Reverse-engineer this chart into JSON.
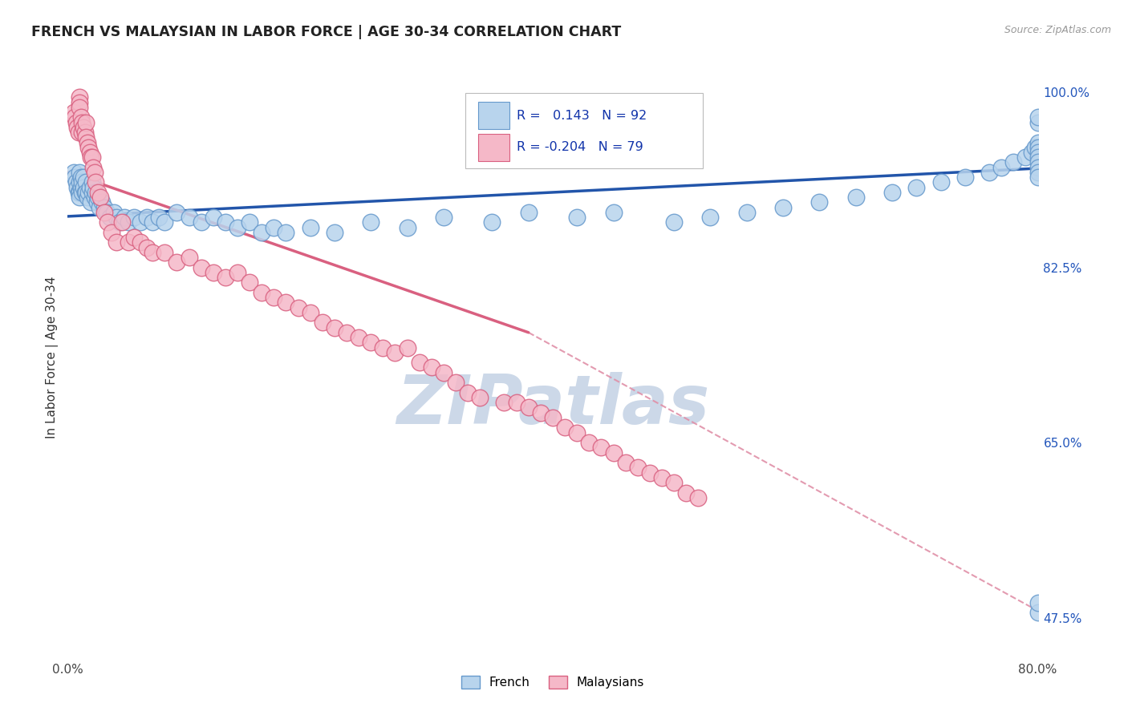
{
  "title": "FRENCH VS MALAYSIAN IN LABOR FORCE | AGE 30-34 CORRELATION CHART",
  "source_text": "Source: ZipAtlas.com",
  "ylabel": "In Labor Force | Age 30-34",
  "xlim": [
    0.0,
    0.8
  ],
  "ylim": [
    0.435,
    1.035
  ],
  "yticks_right": [
    1.0,
    0.825,
    0.65,
    0.475
  ],
  "ytick_labels_right": [
    "100.0%",
    "82.5%",
    "65.0%",
    "47.5%"
  ],
  "R_french": 0.143,
  "N_french": 92,
  "R_malaysian": -0.204,
  "N_malaysian": 79,
  "french_color": "#b8d4ed",
  "french_edge_color": "#6699cc",
  "malaysian_color": "#f5b8c8",
  "malaysian_edge_color": "#d96080",
  "trend_french_color": "#2255aa",
  "trend_malaysian_color": "#d96080",
  "dash_color": "#e090a8",
  "watermark_color": "#ccd8e8",
  "background_color": "#ffffff",
  "grid_color": "#cccccc",
  "fr_x": [
    0.005,
    0.006,
    0.007,
    0.008,
    0.009,
    0.01,
    0.01,
    0.01,
    0.01,
    0.011,
    0.011,
    0.012,
    0.012,
    0.013,
    0.013,
    0.014,
    0.015,
    0.015,
    0.016,
    0.017,
    0.018,
    0.019,
    0.02,
    0.02,
    0.021,
    0.022,
    0.023,
    0.024,
    0.025,
    0.026,
    0.028,
    0.03,
    0.032,
    0.035,
    0.038,
    0.04,
    0.043,
    0.047,
    0.05,
    0.055,
    0.06,
    0.065,
    0.07,
    0.075,
    0.08,
    0.09,
    0.1,
    0.11,
    0.12,
    0.13,
    0.14,
    0.15,
    0.16,
    0.17,
    0.18,
    0.2,
    0.22,
    0.25,
    0.28,
    0.31,
    0.35,
    0.38,
    0.42,
    0.45,
    0.5,
    0.53,
    0.56,
    0.59,
    0.62,
    0.65,
    0.68,
    0.7,
    0.72,
    0.74,
    0.76,
    0.77,
    0.78,
    0.79,
    0.795,
    0.798,
    0.8,
    0.8,
    0.8,
    0.8,
    0.8,
    0.8,
    0.8,
    0.8,
    0.8,
    0.8,
    0.8,
    0.8
  ],
  "fr_y": [
    0.92,
    0.915,
    0.91,
    0.905,
    0.9,
    0.92,
    0.91,
    0.9,
    0.895,
    0.915,
    0.905,
    0.91,
    0.9,
    0.915,
    0.905,
    0.9,
    0.91,
    0.9,
    0.895,
    0.9,
    0.905,
    0.89,
    0.91,
    0.9,
    0.905,
    0.895,
    0.9,
    0.89,
    0.895,
    0.885,
    0.89,
    0.885,
    0.88,
    0.875,
    0.88,
    0.875,
    0.87,
    0.875,
    0.87,
    0.875,
    0.87,
    0.875,
    0.87,
    0.875,
    0.87,
    0.88,
    0.875,
    0.87,
    0.875,
    0.87,
    0.865,
    0.87,
    0.86,
    0.865,
    0.86,
    0.865,
    0.86,
    0.87,
    0.865,
    0.875,
    0.87,
    0.88,
    0.875,
    0.88,
    0.87,
    0.875,
    0.88,
    0.885,
    0.89,
    0.895,
    0.9,
    0.905,
    0.91,
    0.915,
    0.92,
    0.925,
    0.93,
    0.935,
    0.94,
    0.945,
    0.95,
    0.945,
    0.94,
    0.935,
    0.93,
    0.925,
    0.92,
    0.915,
    0.48,
    0.49,
    0.97,
    0.975
  ],
  "my_x": [
    0.005,
    0.006,
    0.007,
    0.008,
    0.009,
    0.01,
    0.01,
    0.01,
    0.011,
    0.012,
    0.012,
    0.013,
    0.014,
    0.015,
    0.015,
    0.016,
    0.017,
    0.018,
    0.019,
    0.02,
    0.021,
    0.022,
    0.023,
    0.025,
    0.027,
    0.03,
    0.033,
    0.036,
    0.04,
    0.045,
    0.05,
    0.055,
    0.06,
    0.065,
    0.07,
    0.08,
    0.09,
    0.1,
    0.11,
    0.12,
    0.13,
    0.14,
    0.15,
    0.16,
    0.17,
    0.18,
    0.19,
    0.2,
    0.21,
    0.22,
    0.23,
    0.24,
    0.25,
    0.26,
    0.27,
    0.28,
    0.29,
    0.3,
    0.31,
    0.32,
    0.33,
    0.34,
    0.36,
    0.37,
    0.38,
    0.39,
    0.4,
    0.41,
    0.42,
    0.43,
    0.44,
    0.45,
    0.46,
    0.47,
    0.48,
    0.49,
    0.5,
    0.51,
    0.52
  ],
  "my_y": [
    0.98,
    0.975,
    0.97,
    0.965,
    0.96,
    0.995,
    0.99,
    0.985,
    0.975,
    0.97,
    0.96,
    0.965,
    0.96,
    0.97,
    0.955,
    0.95,
    0.945,
    0.94,
    0.935,
    0.935,
    0.925,
    0.92,
    0.91,
    0.9,
    0.895,
    0.88,
    0.87,
    0.86,
    0.85,
    0.87,
    0.85,
    0.855,
    0.85,
    0.845,
    0.84,
    0.84,
    0.83,
    0.835,
    0.825,
    0.82,
    0.815,
    0.82,
    0.81,
    0.8,
    0.795,
    0.79,
    0.785,
    0.78,
    0.77,
    0.765,
    0.76,
    0.755,
    0.75,
    0.745,
    0.74,
    0.745,
    0.73,
    0.725,
    0.72,
    0.71,
    0.7,
    0.695,
    0.69,
    0.69,
    0.685,
    0.68,
    0.675,
    0.665,
    0.66,
    0.65,
    0.645,
    0.64,
    0.63,
    0.625,
    0.62,
    0.615,
    0.61,
    0.6,
    0.595
  ],
  "fr_trend_x0": 0.0,
  "fr_trend_y0": 0.876,
  "fr_trend_x1": 0.8,
  "fr_trend_y1": 0.924,
  "my_trend_solid_x0": 0.0,
  "my_trend_solid_y0": 0.92,
  "my_trend_solid_x1": 0.38,
  "my_trend_solid_y1": 0.76,
  "my_trend_dash_x0": 0.38,
  "my_trend_dash_y0": 0.76,
  "my_trend_dash_x1": 0.8,
  "my_trend_dash_y1": 0.482
}
